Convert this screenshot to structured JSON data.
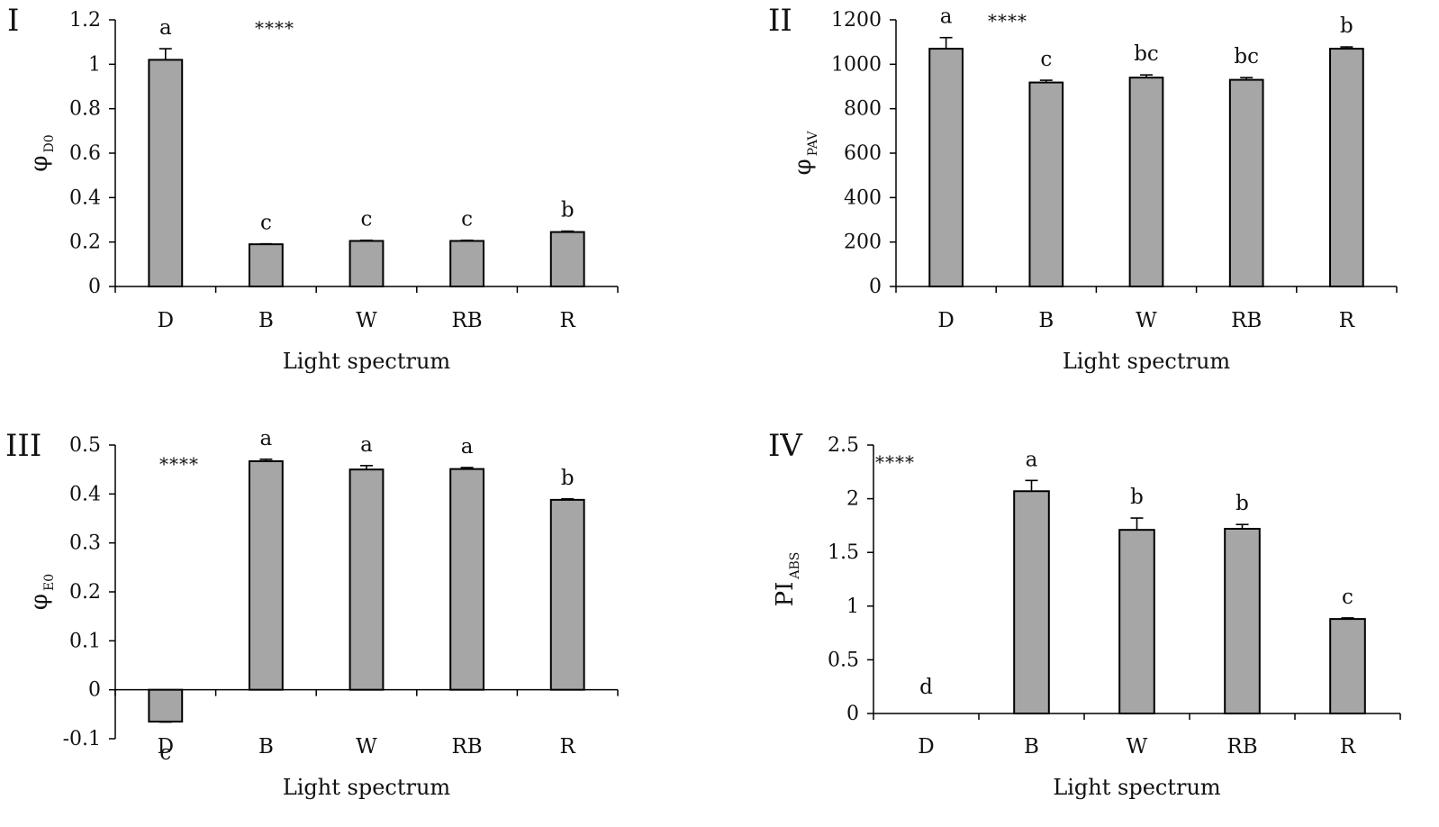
{
  "chart_data": [
    {
      "type": "bar",
      "panel_label": "I",
      "title": "",
      "ylabel": {
        "main": "φ",
        "sub": "D0"
      },
      "xlabel": "Light spectrum",
      "categories": [
        "D",
        "B",
        "W",
        "RB",
        "R"
      ],
      "values": [
        1.02,
        0.19,
        0.205,
        0.205,
        0.245
      ],
      "errors": [
        0.05,
        0.002,
        0.003,
        0.003,
        0.004
      ],
      "sig_letters": [
        "a",
        "c",
        "c",
        "c",
        "b"
      ],
      "significance": "****",
      "ylim": [
        0,
        1.2
      ],
      "yticks": [
        0,
        0.2,
        0.4,
        0.6,
        0.8,
        1,
        1.2
      ],
      "ytick_labels": [
        "0",
        "0.2",
        "0.4",
        "0.6",
        "0.8",
        "1",
        "1.2"
      ]
    },
    {
      "type": "bar",
      "panel_label": "II",
      "title": "",
      "ylabel": {
        "main": "φ",
        "sub": "PAV"
      },
      "xlabel": "Light spectrum",
      "categories": [
        "D",
        "B",
        "W",
        "RB",
        "R"
      ],
      "values": [
        1070,
        918,
        940,
        930,
        1070
      ],
      "errors": [
        50,
        10,
        12,
        10,
        8
      ],
      "sig_letters": [
        "a",
        "c",
        "bc",
        "bc",
        "b"
      ],
      "significance": "****",
      "ylim": [
        0,
        1200
      ],
      "yticks": [
        0,
        200,
        400,
        600,
        800,
        1000,
        1200
      ],
      "ytick_labels": [
        "0",
        "200",
        "400",
        "600",
        "800",
        "1000",
        "1200"
      ]
    },
    {
      "type": "bar",
      "panel_label": "III",
      "title": "",
      "ylabel": {
        "main": "φ",
        "sub": "E0"
      },
      "xlabel": "Light spectrum",
      "categories": [
        "D",
        "B",
        "W",
        "RB",
        "R"
      ],
      "values": [
        -0.065,
        0.467,
        0.45,
        0.451,
        0.388
      ],
      "errors": [
        0.001,
        0.004,
        0.008,
        0.003,
        0.002
      ],
      "sig_letters": [
        "c",
        "a",
        "a",
        "a",
        "b"
      ],
      "significance": "****",
      "ylim": [
        -0.1,
        0.5
      ],
      "yticks": [
        -0.1,
        0,
        0.1,
        0.2,
        0.3,
        0.4,
        0.5
      ],
      "ytick_labels": [
        "-0.1",
        "0",
        "0.1",
        "0.2",
        "0.3",
        "0.4",
        "0.5"
      ]
    },
    {
      "type": "bar",
      "panel_label": "IV",
      "title": "",
      "ylabel": {
        "main": "PI",
        "sub": "ABS"
      },
      "xlabel": "Light spectrum",
      "categories": [
        "D",
        "B",
        "W",
        "RB",
        "R"
      ],
      "values": [
        0,
        2.07,
        1.71,
        1.72,
        0.88
      ],
      "errors": [
        0,
        0.1,
        0.11,
        0.04,
        0.01
      ],
      "sig_letters": [
        "d",
        "a",
        "b",
        "b",
        "c"
      ],
      "significance": "****",
      "ylim": [
        0,
        2.5
      ],
      "yticks": [
        0,
        0.5,
        1,
        1.5,
        2,
        2.5
      ],
      "ytick_labels": [
        "0",
        "0.5",
        "1",
        "1.5",
        "2",
        "2.5"
      ]
    }
  ]
}
